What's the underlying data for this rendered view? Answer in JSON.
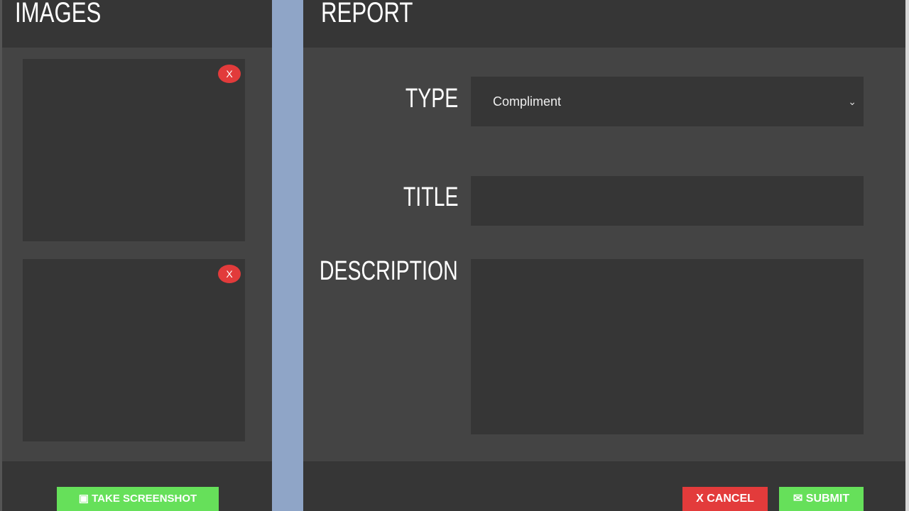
{
  "images": {
    "title": "IMAGES",
    "remove_label": "X",
    "screenshot_button": "TAKE SCREENSHOT",
    "screenshot_icon": "camera-icon"
  },
  "report": {
    "title": "REPORT",
    "type_label": "TYPE",
    "type_value": "Compliment",
    "title_label": "TITLE",
    "title_value": "",
    "description_label": "DESCRIPTION",
    "description_value": "",
    "cancel_button": "X CANCEL",
    "submit_button": "SUBMIT",
    "submit_icon": "envelope-icon"
  },
  "colors": {
    "accent_green": "#66e05a",
    "danger_red": "#e33b3b"
  }
}
